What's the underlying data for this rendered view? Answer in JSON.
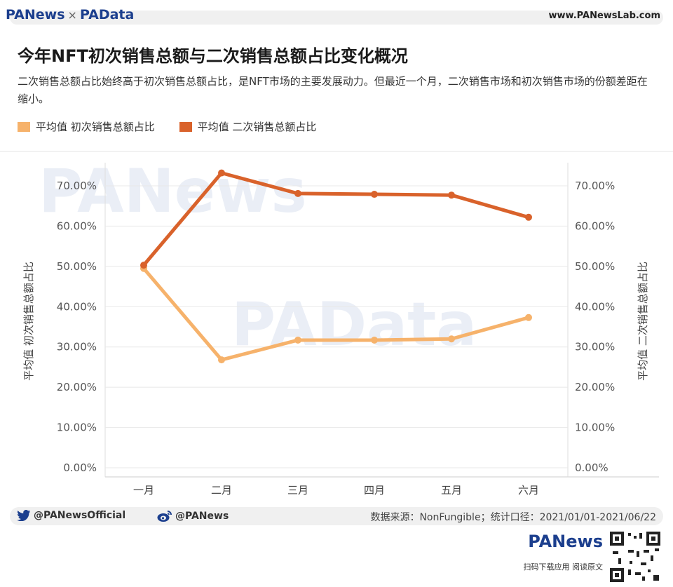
{
  "header": {
    "brand_left": "PANews",
    "brand_sep": "×",
    "brand_right": "PAData",
    "site": "www.PANewsLab.com"
  },
  "title": "今年NFT初次销售总额与二次销售总额占比变化概况",
  "subtitle": "二次销售总额占比始终高于初次销售总额占比，是NFT市场的主要发展动力。但最近一个月，二次销售市场和初次销售市场的份额差距在缩小。",
  "colors": {
    "primary": "#f6b26b",
    "secondary": "#d9622b",
    "grid": "#e8e8e8",
    "axis": "#999999"
  },
  "watermarks": {
    "a": "PANews",
    "b": "PAData"
  },
  "chart_data": {
    "type": "line",
    "categories": [
      "一月",
      "二月",
      "三月",
      "四月",
      "五月",
      "六月"
    ],
    "series": [
      {
        "name": "平均值 初次销售总额占比",
        "values": [
          49.5,
          26.8,
          31.7,
          31.7,
          32.0,
          37.3
        ],
        "color": "#f6b26b"
      },
      {
        "name": "平均值 二次销售总额占比",
        "values": [
          50.3,
          73.2,
          68.1,
          67.9,
          67.7,
          62.2
        ],
        "color": "#d9622b"
      }
    ],
    "ylabel_left": "平均值 初次销售总额占比",
    "ylabel_right": "平均值 二次销售总额占比",
    "ylim": [
      0,
      70
    ],
    "yticks": [
      "0.00%",
      "10.00%",
      "20.00%",
      "30.00%",
      "40.00%",
      "50.00%",
      "60.00%",
      "70.00%"
    ],
    "grid": true,
    "legend_position": "top-left"
  },
  "footer": {
    "twitter": "@PANewsOfficial",
    "weibo": "@PANews",
    "source": "数据来源：NonFungible；统计口径：2021/01/01-2021/06/22"
  },
  "bottom": {
    "logo": "PANews",
    "caption": "扫码下载应用 阅读原文"
  }
}
